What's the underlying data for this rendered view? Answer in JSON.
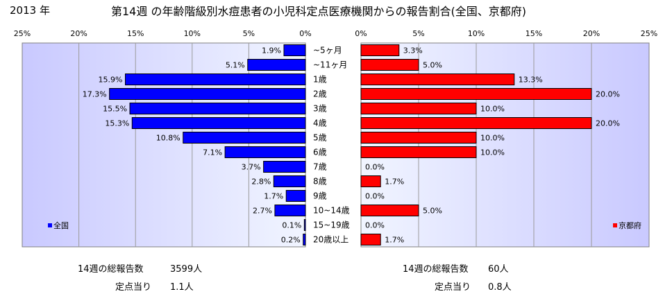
{
  "header": {
    "year": "2013 年",
    "title": "第14週 の年齢階級別水痘患者の小児科定点医療機関からの報告割合(全国、京都府)"
  },
  "chart_data": {
    "type": "bar",
    "orientation": "horizontal",
    "categories": [
      "~5ヶ月",
      "~11ヶ月",
      "1歳",
      "2歳",
      "3歳",
      "4歳",
      "5歳",
      "6歳",
      "7歳",
      "8歳",
      "9歳",
      "10~14歳",
      "15~19歳",
      "20歳以上"
    ],
    "series": [
      {
        "name": "全国",
        "color": "#0000ff",
        "values": [
          1.9,
          5.1,
          15.9,
          17.3,
          15.5,
          15.3,
          10.8,
          7.1,
          3.7,
          2.8,
          1.7,
          2.7,
          0.1,
          0.2
        ],
        "value_labels": [
          "1.9%",
          "5.1%",
          "15.9%",
          "17.3%",
          "15.5%",
          "15.3%",
          "10.8%",
          "7.1%",
          "3.7%",
          "2.8%",
          "1.7%",
          "2.7%",
          "0.1%",
          "0.2%"
        ]
      },
      {
        "name": "京都府",
        "color": "#ff0000",
        "values": [
          3.3,
          5.0,
          13.3,
          20.0,
          10.0,
          20.0,
          10.0,
          10.0,
          0.0,
          1.7,
          0.0,
          5.0,
          0.0,
          1.7
        ],
        "value_labels": [
          "3.3%",
          "5.0%",
          "13.3%",
          "20.0%",
          "10.0%",
          "20.0%",
          "10.0%",
          "10.0%",
          "0.0%",
          "1.7%",
          "0.0%",
          "5.0%",
          "0.0%",
          "1.7%"
        ]
      }
    ],
    "left_ticks": [
      "25%",
      "20%",
      "15%",
      "10%",
      "5%",
      "0%"
    ],
    "right_ticks": [
      "0%",
      "5%",
      "10%",
      "15%",
      "20%",
      "25%"
    ],
    "xlim": [
      0,
      25
    ],
    "grid": true,
    "legend_left": "全国",
    "legend_right": "京都府"
  },
  "footer": {
    "national_total_label": "14週の総報告数",
    "national_total_value": "3599人",
    "national_per_label": "定点当り",
    "national_per_value": "1.1人",
    "kyoto_total_label": "14週の総報告数",
    "kyoto_total_value": "60人",
    "kyoto_per_label": "定点当り",
    "kyoto_per_value": "0.8人"
  }
}
